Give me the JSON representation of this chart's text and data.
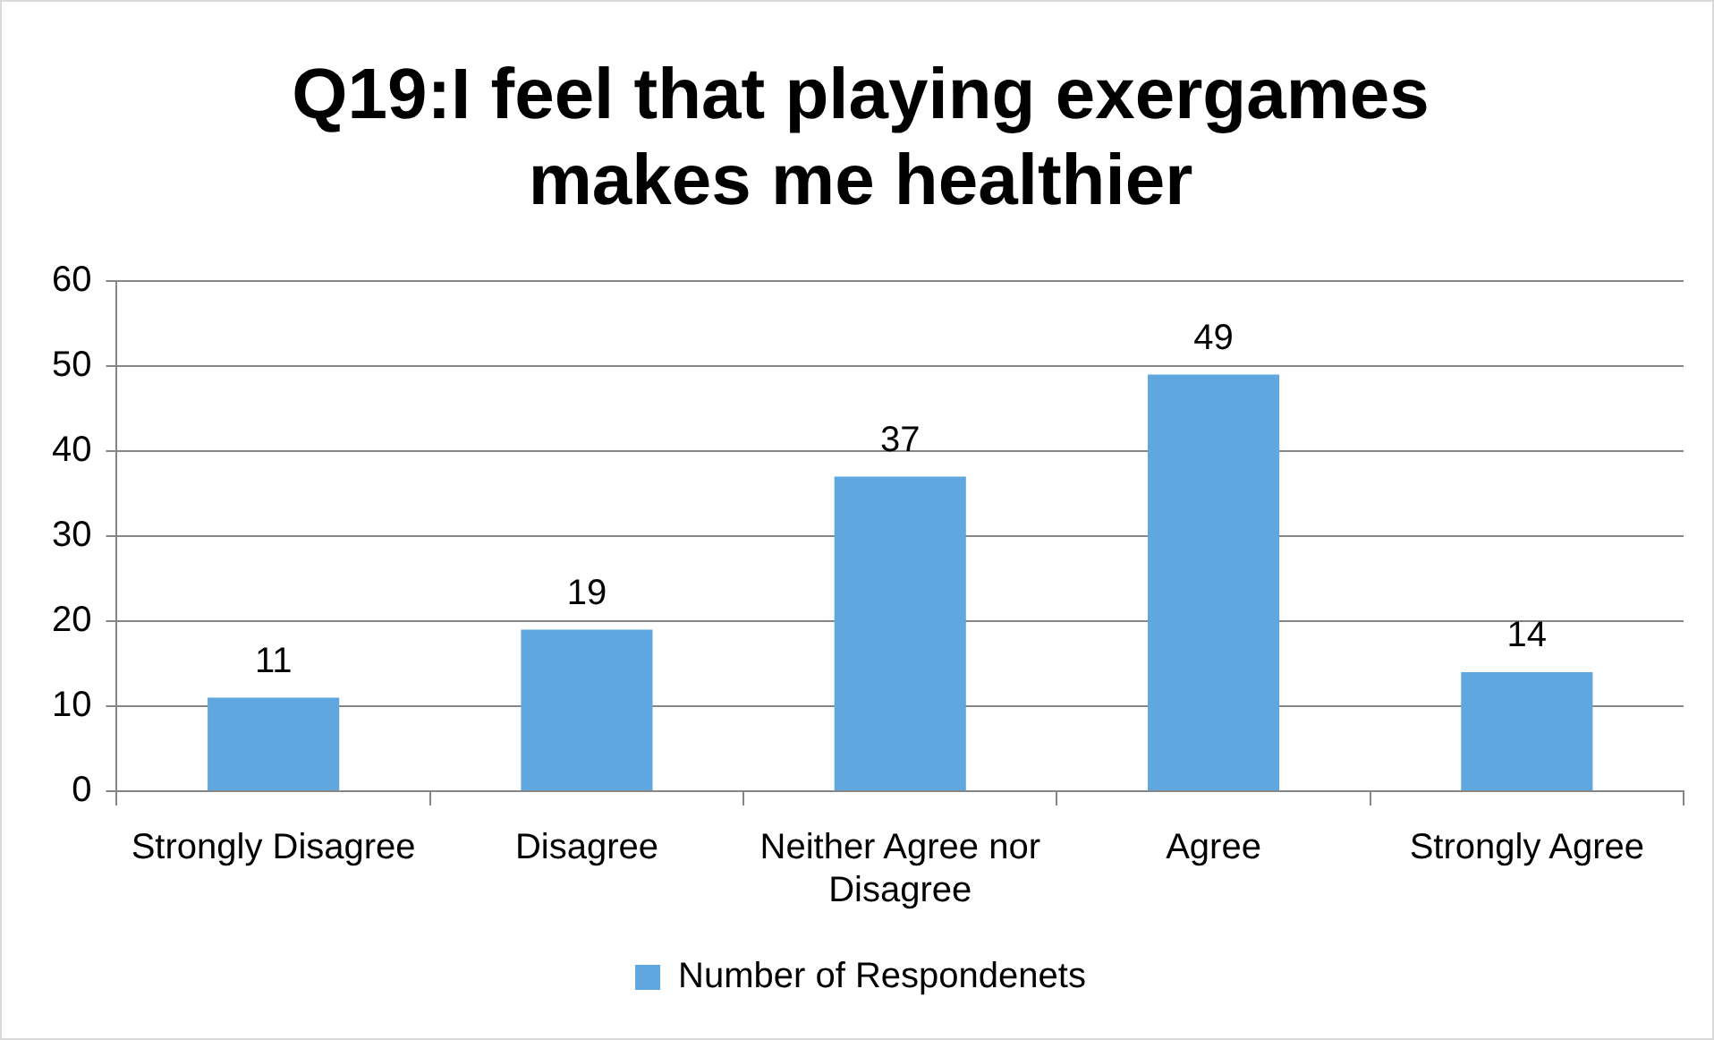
{
  "chart_data": {
    "type": "bar",
    "title": "Q19:I feel that playing exergames makes me healthier",
    "categories": [
      "Strongly Disagree",
      "Disagree",
      "Neither Agree nor Disagree",
      "Agree",
      "Strongly Agree"
    ],
    "series": [
      {
        "name": "Number of Respondenets",
        "color": "#5fa7de",
        "values": [
          11,
          19,
          37,
          49,
          14
        ]
      }
    ],
    "ylim": [
      0,
      60
    ],
    "yticks": [
      0,
      10,
      20,
      30,
      40,
      50,
      60
    ],
    "grid": "y",
    "legend": "bottom",
    "data_labels": true
  }
}
